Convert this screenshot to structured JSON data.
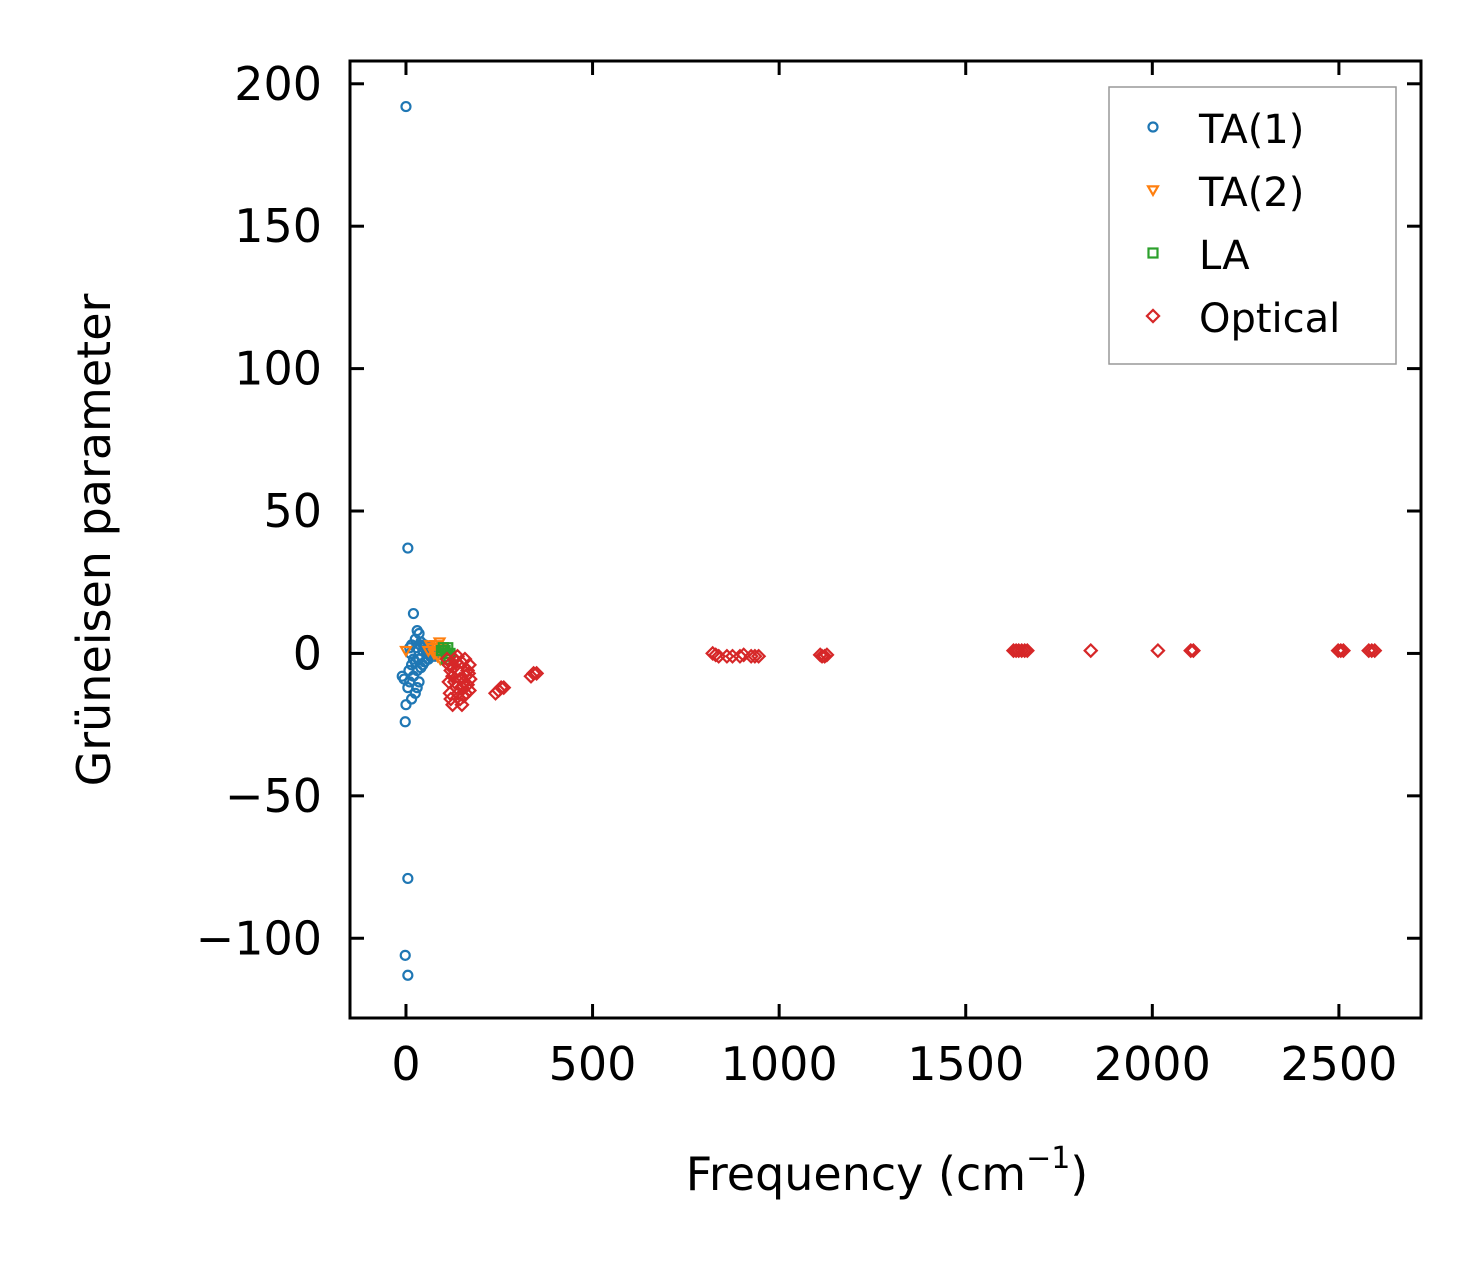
{
  "chart_data": {
    "type": "scatter",
    "title": "",
    "xlabel": "Frequency (cm",
    "xlabel_sup": "−1",
    "xlabel_suffix": ")",
    "ylabel": "Grüneisen parameter",
    "xlim": [
      -150,
      2720
    ],
    "ylim": [
      -128,
      208
    ],
    "xticks": [
      0,
      500,
      1000,
      1500,
      2000,
      2500
    ],
    "xtick_labels": [
      "0",
      "500",
      "1000",
      "1500",
      "2000",
      "2500"
    ],
    "yticks": [
      -100,
      -50,
      0,
      50,
      100,
      150,
      200
    ],
    "ytick_labels": [
      "−100",
      "−50",
      "0",
      "50",
      "100",
      "150",
      "200"
    ],
    "legend_position": "top-right",
    "series": [
      {
        "name": "TA(1)",
        "marker": "circle",
        "color": "#1f77b4",
        "points": [
          [
            0,
            192
          ],
          [
            5,
            37
          ],
          [
            20,
            14
          ],
          [
            30,
            8
          ],
          [
            35,
            7
          ],
          [
            25,
            5
          ],
          [
            15,
            3
          ],
          [
            10,
            2
          ],
          [
            40,
            4
          ],
          [
            50,
            3
          ],
          [
            60,
            2
          ],
          [
            70,
            1
          ],
          [
            80,
            0.5
          ],
          [
            90,
            0
          ],
          [
            45,
            1
          ],
          [
            55,
            0
          ],
          [
            65,
            -1
          ],
          [
            35,
            -2
          ],
          [
            25,
            -3
          ],
          [
            15,
            -4
          ],
          [
            30,
            -6
          ],
          [
            20,
            -8
          ],
          [
            10,
            -10
          ],
          [
            5,
            -12
          ],
          [
            -10,
            -8
          ],
          [
            -5,
            -9
          ],
          [
            0,
            -18
          ],
          [
            -2,
            -24
          ],
          [
            15,
            -16
          ],
          [
            25,
            -14
          ],
          [
            30,
            -12
          ],
          [
            40,
            -5
          ],
          [
            50,
            -3
          ],
          [
            60,
            -2
          ],
          [
            70,
            -1
          ],
          [
            45,
            -4
          ],
          [
            35,
            -10
          ],
          [
            20,
            -2
          ],
          [
            12,
            0
          ],
          [
            28,
            2
          ],
          [
            38,
            3
          ],
          [
            48,
            2
          ],
          [
            58,
            1
          ],
          [
            68,
            0
          ],
          [
            78,
            -1
          ],
          [
            8,
            -6
          ],
          [
            5,
            -79
          ],
          [
            -2,
            -106
          ],
          [
            5,
            -113
          ]
        ]
      },
      {
        "name": "TA(2)",
        "marker": "triangle-down",
        "color": "#ff7f0e",
        "points": [
          [
            80,
            3
          ],
          [
            90,
            4
          ],
          [
            95,
            2
          ],
          [
            100,
            1
          ],
          [
            85,
            -1
          ],
          [
            70,
            2
          ],
          [
            60,
            1
          ],
          [
            75,
            0
          ],
          [
            105,
            0
          ],
          [
            0,
            1
          ],
          [
            92,
            -2
          ],
          [
            65,
            3
          ]
        ]
      },
      {
        "name": "LA",
        "marker": "square",
        "color": "#2ca02c",
        "points": [
          [
            100,
            2
          ],
          [
            105,
            1
          ],
          [
            110,
            0
          ],
          [
            115,
            -1
          ],
          [
            108,
            -2
          ],
          [
            95,
            1
          ],
          [
            112,
            2
          ],
          [
            118,
            0
          ]
        ]
      },
      {
        "name": "Optical",
        "marker": "diamond",
        "color": "#d62728",
        "points": [
          [
            110,
            -2
          ],
          [
            115,
            -4
          ],
          [
            120,
            -6
          ],
          [
            125,
            -8
          ],
          [
            130,
            -10
          ],
          [
            135,
            -12
          ],
          [
            140,
            -14
          ],
          [
            145,
            -16
          ],
          [
            150,
            -12
          ],
          [
            155,
            -10
          ],
          [
            160,
            -8
          ],
          [
            165,
            -6
          ],
          [
            170,
            -4
          ],
          [
            160,
            -14
          ],
          [
            150,
            -18
          ],
          [
            140,
            -6
          ],
          [
            130,
            -2
          ],
          [
            120,
            -16
          ],
          [
            125,
            -18
          ],
          [
            135,
            -3
          ],
          [
            145,
            -9
          ],
          [
            155,
            -15
          ],
          [
            165,
            -11
          ],
          [
            170,
            -13
          ],
          [
            115,
            -10
          ],
          [
            118,
            -14
          ],
          [
            128,
            -5
          ],
          [
            138,
            -1
          ],
          [
            148,
            -3
          ],
          [
            158,
            -2
          ],
          [
            168,
            -7
          ],
          [
            172,
            -9
          ],
          [
            240,
            -14
          ],
          [
            248,
            -13
          ],
          [
            255,
            -12
          ],
          [
            262,
            -12
          ],
          [
            335,
            -8
          ],
          [
            342,
            -7
          ],
          [
            350,
            -7
          ],
          [
            822,
            0
          ],
          [
            830,
            -0.5
          ],
          [
            838,
            -1
          ],
          [
            860,
            -1
          ],
          [
            875,
            -1
          ],
          [
            895,
            -1
          ],
          [
            905,
            -0.5
          ],
          [
            925,
            -1
          ],
          [
            935,
            -1
          ],
          [
            945,
            -1
          ],
          [
            1110,
            -0.5
          ],
          [
            1115,
            -1
          ],
          [
            1122,
            -1
          ],
          [
            1128,
            -0.5
          ],
          [
            1628,
            1
          ],
          [
            1635,
            1
          ],
          [
            1642,
            1
          ],
          [
            1650,
            1
          ],
          [
            1658,
            1
          ],
          [
            1665,
            1
          ],
          [
            1835,
            1
          ],
          [
            2015,
            1
          ],
          [
            2103,
            1
          ],
          [
            2110,
            1
          ],
          [
            2498,
            1
          ],
          [
            2505,
            1
          ],
          [
            2512,
            1
          ],
          [
            2580,
            1
          ],
          [
            2588,
            1
          ],
          [
            2596,
            1
          ]
        ]
      }
    ]
  }
}
